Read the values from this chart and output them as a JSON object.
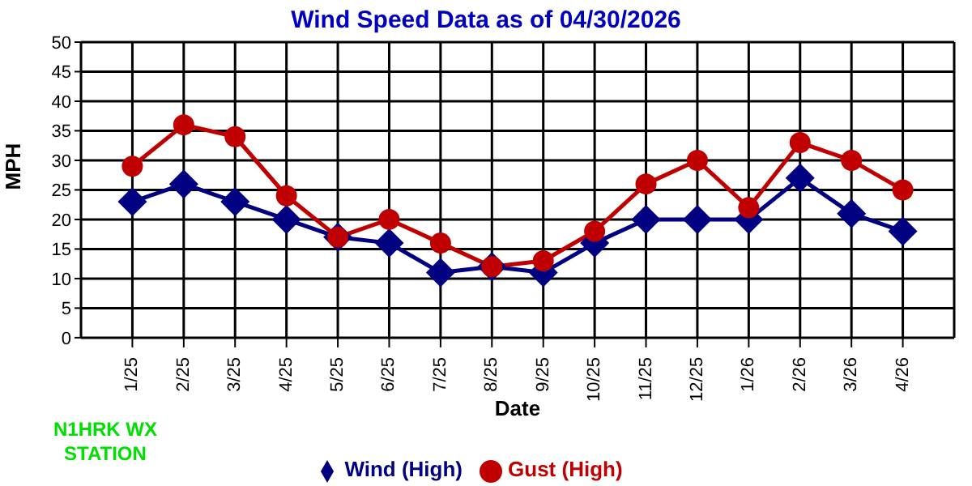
{
  "chart_data": {
    "type": "line",
    "title": "Wind Speed Data as of 04/30/2026",
    "xlabel": "Date",
    "ylabel": "MPH",
    "categories": [
      "1/25",
      "2/25",
      "3/25",
      "4/25",
      "5/25",
      "6/25",
      "7/25",
      "8/25",
      "9/25",
      "10/25",
      "11/25",
      "12/25",
      "1/26",
      "2/26",
      "3/26",
      "4/26"
    ],
    "series": [
      {
        "name": "Wind (High)",
        "color": "#000080",
        "marker": "diamond",
        "values": [
          23,
          26,
          23,
          20,
          17,
          16,
          11,
          12,
          11,
          16,
          20,
          20,
          20,
          27,
          21,
          18
        ]
      },
      {
        "name": "Gust (High)",
        "color": "#c00000",
        "marker": "circle",
        "values": [
          29,
          36,
          34,
          24,
          17,
          20,
          16,
          12,
          13,
          18,
          26,
          30,
          22,
          33,
          30,
          25
        ]
      }
    ],
    "ylim": [
      0,
      50
    ],
    "yticks": [
      0,
      5,
      10,
      15,
      20,
      25,
      30,
      35,
      40,
      45,
      50
    ],
    "grid": true,
    "legend": "bottom",
    "line_style": "solid",
    "annotations": [
      "N1HRK WX STATION"
    ]
  }
}
